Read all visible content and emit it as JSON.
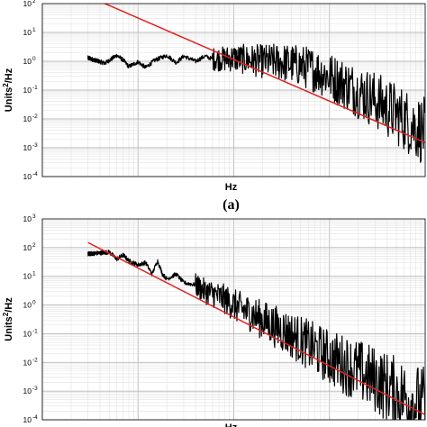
{
  "chart_data": [
    {
      "type": "line",
      "panel_label": "(a)",
      "xlabel": "Hz",
      "ylabel_base": "Units",
      "ylabel_sup": "2",
      "ylabel_tail": "/Hz",
      "xscale": "log",
      "yscale": "log",
      "xlim": [
        0.001,
        10
      ],
      "ylim": [
        0.0001,
        100
      ],
      "grid": true,
      "y_ticks": [
        {
          "base": "10",
          "exp": "2",
          "value": 100
        },
        {
          "base": "10",
          "exp": "1",
          "value": 10
        },
        {
          "base": "10",
          "exp": "0",
          "value": 1
        },
        {
          "base": "10",
          "exp": "-1",
          "value": 0.1
        },
        {
          "base": "10",
          "exp": "-2",
          "value": 0.01
        },
        {
          "base": "10",
          "exp": "-3",
          "value": 0.001
        },
        {
          "base": "10",
          "exp": "-4",
          "value": 0.0001
        }
      ],
      "series": [
        {
          "kind": "spectrum",
          "color": "#000000",
          "x": [
            0.003,
            0.0045,
            0.006,
            0.007,
            0.008,
            0.01,
            0.012,
            0.015,
            0.02,
            0.025,
            0.03,
            0.04,
            0.05,
            0.06,
            0.08,
            0.1,
            0.15,
            0.2,
            0.3,
            0.5,
            0.7,
            1,
            1.5,
            2,
            3,
            5,
            7,
            10
          ],
          "y": [
            1.3,
            0.85,
            1.6,
            1.1,
            0.65,
            0.95,
            0.6,
            1.1,
            1.6,
            0.9,
            1.5,
            1.0,
            1.5,
            1.2,
            1.2,
            1.3,
            1.1,
            1.0,
            0.95,
            0.7,
            0.5,
            0.3,
            0.15,
            0.09,
            0.045,
            0.015,
            0.007,
            0.0035
          ],
          "noise_from": 0.06,
          "noise_width": [
            0.4,
            1.2
          ]
        },
        {
          "kind": "fit",
          "color": "#e0201e",
          "x": [
            0.003,
            10
          ],
          "y": [
            180,
            0.0015
          ]
        }
      ]
    },
    {
      "type": "line",
      "panel_label": "",
      "xlabel": "Hz",
      "ylabel_base": "Units",
      "ylabel_sup": "2",
      "ylabel_tail": "/Hz",
      "xscale": "log",
      "yscale": "log",
      "xlim": [
        0.001,
        10
      ],
      "ylim": [
        0.0001,
        1000
      ],
      "grid": true,
      "y_ticks": [
        {
          "base": "10",
          "exp": "3",
          "value": 1000
        },
        {
          "base": "10",
          "exp": "2",
          "value": 100
        },
        {
          "base": "10",
          "exp": "1",
          "value": 10
        },
        {
          "base": "10",
          "exp": "0",
          "value": 1
        },
        {
          "base": "10",
          "exp": "-1",
          "value": 0.1
        },
        {
          "base": "10",
          "exp": "-2",
          "value": 0.01
        },
        {
          "base": "10",
          "exp": "-3",
          "value": 0.001
        },
        {
          "base": "10",
          "exp": "-4",
          "value": 0.0001
        }
      ],
      "series": [
        {
          "kind": "spectrum",
          "color": "#000000",
          "x": [
            0.003,
            0.004,
            0.005,
            0.006,
            0.007,
            0.008,
            0.01,
            0.012,
            0.014,
            0.016,
            0.018,
            0.02,
            0.025,
            0.03,
            0.04,
            0.05,
            0.06,
            0.08,
            0.1,
            0.15,
            0.2,
            0.3,
            0.5,
            0.7,
            1,
            1.5,
            2,
            3,
            5,
            7,
            10
          ],
          "y": [
            60,
            65,
            70,
            40,
            55,
            35,
            25,
            30,
            12,
            35,
            12,
            8,
            12,
            6,
            5,
            3,
            2.5,
            1.6,
            1.0,
            0.5,
            0.3,
            0.15,
            0.06,
            0.03,
            0.015,
            0.008,
            0.005,
            0.0025,
            0.0009,
            0.0005,
            0.0003
          ],
          "noise_from": 0.04,
          "noise_width": [
            0.4,
            1.4
          ]
        },
        {
          "kind": "fit",
          "color": "#e0201e",
          "x": [
            0.003,
            10
          ],
          "y": [
            150,
            0.00015
          ]
        }
      ]
    }
  ]
}
